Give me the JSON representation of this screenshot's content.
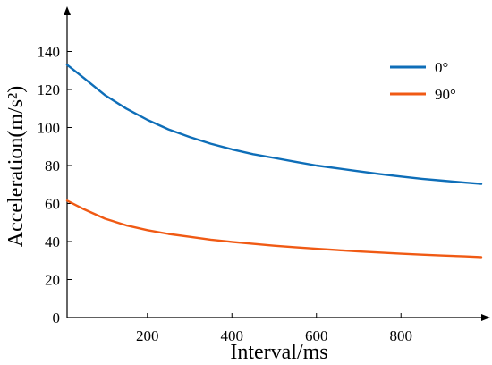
{
  "chart_data": {
    "type": "line",
    "xlabel": "Interval/ms",
    "ylabel": "Acceleration(m/s²)",
    "xlim": [
      10,
      990
    ],
    "ylim": [
      0,
      160
    ],
    "xticks": [
      200,
      400,
      600,
      800
    ],
    "yticks": [
      0,
      20,
      40,
      60,
      80,
      100,
      120,
      140
    ],
    "legend": "top-right",
    "grid": false,
    "x": [
      10,
      50,
      100,
      150,
      200,
      250,
      300,
      350,
      400,
      450,
      500,
      550,
      600,
      650,
      700,
      750,
      800,
      850,
      900,
      950,
      990
    ],
    "series": [
      {
        "name": "0°",
        "color": "#0e6eb8",
        "values": [
          133,
          126,
          117,
          110,
          104,
          99,
          95,
          91.5,
          88.5,
          86,
          84,
          82,
          80,
          78.5,
          77,
          75.5,
          74.2,
          73,
          72,
          71,
          70.3
        ]
      },
      {
        "name": "90°",
        "color": "#f05a14",
        "values": [
          61.5,
          57,
          52,
          48.5,
          46,
          44,
          42.5,
          41,
          39.8,
          38.8,
          37.8,
          37,
          36.2,
          35.5,
          34.8,
          34.2,
          33.6,
          33.1,
          32.6,
          32.2,
          31.8
        ]
      }
    ]
  }
}
